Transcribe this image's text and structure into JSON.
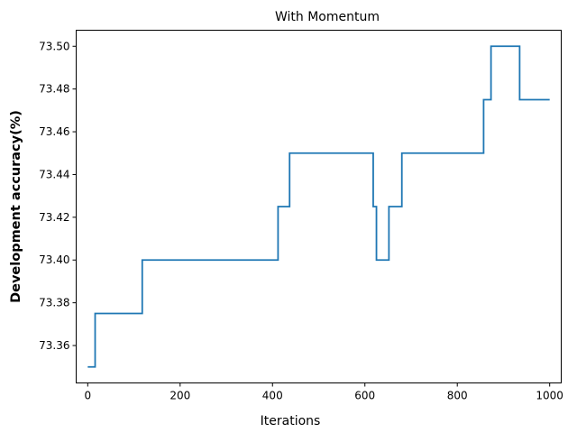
{
  "chart_data": {
    "type": "line",
    "title": "With Momentum",
    "xlabel": "Iterations",
    "ylabel": "Development accuracy(%)",
    "xlim": [
      -25,
      1025
    ],
    "ylim": [
      73.3425,
      73.5075
    ],
    "xticks": [
      0,
      200,
      400,
      600,
      800,
      1000
    ],
    "yticks": [
      73.36,
      73.38,
      73.4,
      73.42,
      73.44,
      73.46,
      73.48,
      73.5
    ],
    "xtick_labels": [
      "0",
      "200",
      "400",
      "600",
      "800",
      "1000"
    ],
    "ytick_labels": [
      "73.36",
      "73.38",
      "73.40",
      "73.42",
      "73.44",
      "73.46",
      "73.48",
      "73.50"
    ],
    "grid": false,
    "series": [
      {
        "color": "#1f77b4",
        "step": "post",
        "x": [
          0,
          16,
          118,
          412,
          437,
          618,
          621,
          625,
          652,
          680,
          857,
          873,
          935,
          1000
        ],
        "y": [
          73.35,
          73.375,
          73.4,
          73.425,
          73.45,
          73.425,
          73.425,
          73.4,
          73.425,
          73.45,
          73.475,
          73.5,
          73.475,
          73.475
        ]
      }
    ]
  }
}
